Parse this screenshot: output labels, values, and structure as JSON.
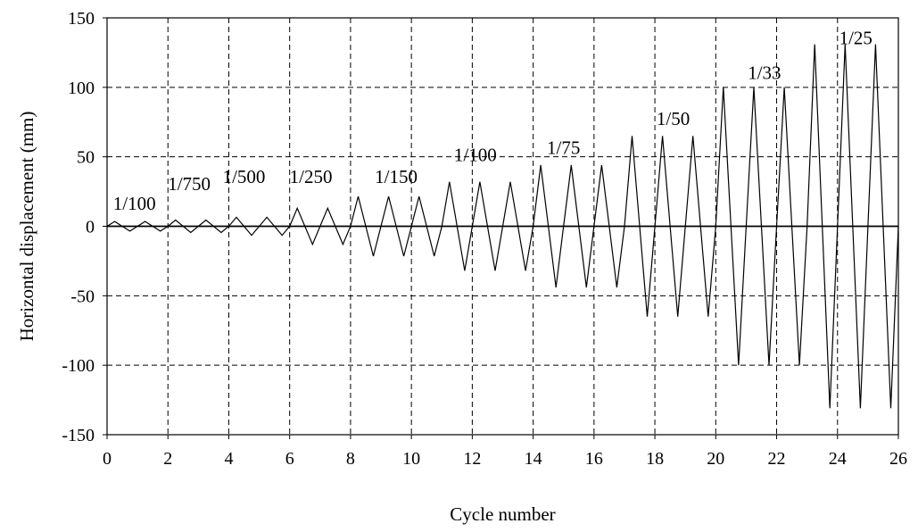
{
  "chart_data": {
    "type": "line",
    "xlabel": "Cycle number",
    "ylabel": "Horizontal displacement (mm)",
    "xlim": [
      0,
      26
    ],
    "ylim": [
      -150,
      150
    ],
    "xticks": [
      0,
      2,
      4,
      6,
      8,
      10,
      12,
      14,
      16,
      18,
      20,
      22,
      24,
      26
    ],
    "yticks": [
      150,
      100,
      50,
      0,
      -50,
      -100,
      -150
    ],
    "grid": true,
    "series": [
      {
        "cycle_amplitudes": [
          {
            "cycles": 2,
            "amplitude": 3.5
          },
          {
            "cycles": 2,
            "amplitude": 4.5
          },
          {
            "cycles": 2,
            "amplitude": 6.5
          },
          {
            "cycles": 2,
            "amplitude": 13
          },
          {
            "cycles": 3,
            "amplitude": 21.5
          },
          {
            "cycles": 3,
            "amplitude": 32
          },
          {
            "cycles": 3,
            "amplitude": 44
          },
          {
            "cycles": 3,
            "amplitude": 65
          },
          {
            "cycles": 3,
            "amplitude": 100
          },
          {
            "cycles": 3,
            "amplitude": 131
          }
        ]
      }
    ],
    "annotations": [
      {
        "text": "1/100",
        "x": 0.9,
        "y": 12
      },
      {
        "text": "1/750",
        "x": 2.7,
        "y": 26
      },
      {
        "text": "1/500",
        "x": 4.5,
        "y": 31
      },
      {
        "text": "1/250",
        "x": 6.7,
        "y": 31
      },
      {
        "text": "1/150",
        "x": 9.5,
        "y": 31
      },
      {
        "text": "1/100",
        "x": 12.1,
        "y": 47
      },
      {
        "text": "1/75",
        "x": 15.0,
        "y": 52
      },
      {
        "text": "1/50",
        "x": 18.6,
        "y": 73
      },
      {
        "text": "1/33",
        "x": 21.6,
        "y": 106
      },
      {
        "text": "1/25",
        "x": 24.6,
        "y": 131
      }
    ]
  }
}
